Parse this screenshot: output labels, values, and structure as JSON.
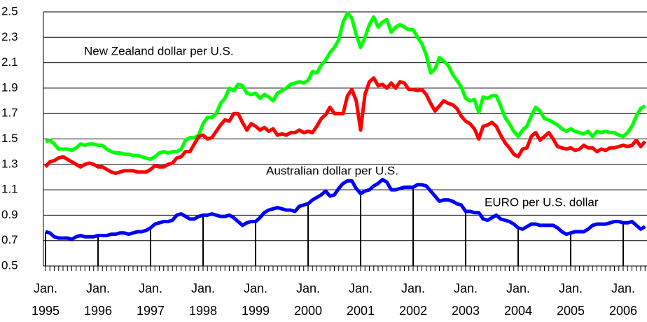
{
  "chart_data": {
    "type": "line",
    "categories": [
      "Jan.\n1995",
      null,
      null,
      null,
      null,
      null,
      null,
      null,
      null,
      null,
      null,
      null,
      "Jan.\n1996",
      null,
      null,
      null,
      null,
      null,
      null,
      null,
      null,
      null,
      null,
      null,
      "Jan.\n1997",
      null,
      null,
      null,
      null,
      null,
      null,
      null,
      null,
      null,
      null,
      null,
      "Jan.\n1998",
      null,
      null,
      null,
      null,
      null,
      null,
      null,
      null,
      null,
      null,
      null,
      "Jan.\n1999",
      null,
      null,
      null,
      null,
      null,
      null,
      null,
      null,
      null,
      null,
      null,
      "Jan.\n2000",
      null,
      null,
      null,
      null,
      null,
      null,
      null,
      null,
      null,
      null,
      null,
      "Jan.\n2001",
      null,
      null,
      null,
      null,
      null,
      null,
      null,
      null,
      null,
      null,
      null,
      "Jan.\n2002",
      null,
      null,
      null,
      null,
      null,
      null,
      null,
      null,
      null,
      null,
      null,
      "Jan.\n2003",
      null,
      null,
      null,
      null,
      null,
      null,
      null,
      null,
      null,
      null,
      null,
      "Jan.\n2004",
      null,
      null,
      null,
      null,
      null,
      null,
      null,
      null,
      null,
      null,
      null,
      "Jan.\n2005",
      null,
      null,
      null,
      null,
      null,
      null,
      null,
      null,
      null,
      null,
      null,
      "Jan.\n2006",
      null,
      null,
      null,
      null,
      null
    ],
    "series": [
      {
        "name": "New Zealand dollar per U.S.",
        "color": "#00ff00",
        "values": [
          1.48,
          1.49,
          1.46,
          1.42,
          1.42,
          1.42,
          1.41,
          1.43,
          1.46,
          1.45,
          1.46,
          1.46,
          1.45,
          1.45,
          1.42,
          1.4,
          1.39,
          1.39,
          1.38,
          1.38,
          1.37,
          1.37,
          1.36,
          1.35,
          1.34,
          1.36,
          1.39,
          1.4,
          1.39,
          1.4,
          1.4,
          1.42,
          1.49,
          1.51,
          1.51,
          1.53,
          1.62,
          1.67,
          1.67,
          1.7,
          1.78,
          1.82,
          1.9,
          1.88,
          1.93,
          1.92,
          1.86,
          1.85,
          1.86,
          1.82,
          1.85,
          1.83,
          1.8,
          1.86,
          1.88,
          1.9,
          1.93,
          1.94,
          1.95,
          1.94,
          1.96,
          2.03,
          2.02,
          2.08,
          2.12,
          2.18,
          2.22,
          2.28,
          2.42,
          2.49,
          2.45,
          2.32,
          2.22,
          2.3,
          2.4,
          2.46,
          2.38,
          2.42,
          2.44,
          2.34,
          2.38,
          2.4,
          2.38,
          2.36,
          2.36,
          2.3,
          2.25,
          2.16,
          2.02,
          2.05,
          2.14,
          2.11,
          2.08,
          2.01,
          1.96,
          1.91,
          1.82,
          1.8,
          1.81,
          1.71,
          1.83,
          1.82,
          1.84,
          1.84,
          1.76,
          1.67,
          1.62,
          1.56,
          1.52,
          1.57,
          1.6,
          1.68,
          1.75,
          1.72,
          1.66,
          1.65,
          1.63,
          1.61,
          1.58,
          1.56,
          1.58,
          1.56,
          1.55,
          1.54,
          1.56,
          1.52,
          1.56,
          1.55,
          1.56,
          1.55,
          1.55,
          1.53,
          1.52,
          1.55,
          1.6,
          1.68,
          1.74,
          1.76
        ]
      },
      {
        "name": "Australian dollar per U.S.",
        "color": "#ff0000",
        "values": [
          1.28,
          1.32,
          1.33,
          1.35,
          1.36,
          1.34,
          1.32,
          1.3,
          1.28,
          1.3,
          1.31,
          1.3,
          1.28,
          1.28,
          1.26,
          1.24,
          1.23,
          1.24,
          1.25,
          1.25,
          1.25,
          1.24,
          1.24,
          1.24,
          1.26,
          1.29,
          1.28,
          1.28,
          1.3,
          1.31,
          1.35,
          1.36,
          1.4,
          1.4,
          1.46,
          1.52,
          1.53,
          1.5,
          1.51,
          1.56,
          1.61,
          1.65,
          1.64,
          1.7,
          1.7,
          1.63,
          1.57,
          1.62,
          1.6,
          1.57,
          1.59,
          1.56,
          1.58,
          1.53,
          1.54,
          1.53,
          1.55,
          1.55,
          1.57,
          1.55,
          1.56,
          1.55,
          1.6,
          1.66,
          1.69,
          1.75,
          1.7,
          1.7,
          1.7,
          1.84,
          1.89,
          1.8,
          1.57,
          1.85,
          1.95,
          1.98,
          1.92,
          1.93,
          1.9,
          1.94,
          1.9,
          1.95,
          1.94,
          1.89,
          1.89,
          1.88,
          1.89,
          1.85,
          1.78,
          1.72,
          1.76,
          1.8,
          1.78,
          1.77,
          1.74,
          1.68,
          1.64,
          1.62,
          1.58,
          1.5,
          1.6,
          1.61,
          1.63,
          1.6,
          1.53,
          1.47,
          1.43,
          1.38,
          1.36,
          1.42,
          1.43,
          1.52,
          1.55,
          1.49,
          1.52,
          1.55,
          1.5,
          1.44,
          1.43,
          1.42,
          1.43,
          1.41,
          1.42,
          1.45,
          1.43,
          1.43,
          1.4,
          1.42,
          1.41,
          1.43,
          1.43,
          1.44,
          1.45,
          1.44,
          1.45,
          1.49,
          1.44,
          1.48
        ]
      },
      {
        "name": "EURO per U.S. dollar",
        "color": "#0000ff",
        "values": [
          0.77,
          0.76,
          0.73,
          0.72,
          0.72,
          0.72,
          0.71,
          0.73,
          0.74,
          0.73,
          0.73,
          0.73,
          0.74,
          0.74,
          0.74,
          0.75,
          0.75,
          0.76,
          0.76,
          0.75,
          0.76,
          0.77,
          0.77,
          0.78,
          0.8,
          0.83,
          0.84,
          0.85,
          0.85,
          0.86,
          0.9,
          0.91,
          0.89,
          0.87,
          0.87,
          0.89,
          0.9,
          0.9,
          0.91,
          0.9,
          0.89,
          0.89,
          0.9,
          0.88,
          0.85,
          0.82,
          0.84,
          0.85,
          0.85,
          0.88,
          0.92,
          0.94,
          0.95,
          0.96,
          0.95,
          0.94,
          0.94,
          0.93,
          0.97,
          0.98,
          0.99,
          1.02,
          1.04,
          1.06,
          1.09,
          1.05,
          1.06,
          1.11,
          1.15,
          1.17,
          1.17,
          1.11,
          1.07,
          1.09,
          1.1,
          1.13,
          1.15,
          1.18,
          1.16,
          1.1,
          1.1,
          1.11,
          1.12,
          1.12,
          1.12,
          1.14,
          1.14,
          1.13,
          1.09,
          1.05,
          1.01,
          1.02,
          1.02,
          1.01,
          0.99,
          0.98,
          0.93,
          0.93,
          0.92,
          0.92,
          0.87,
          0.86,
          0.88,
          0.9,
          0.87,
          0.86,
          0.85,
          0.83,
          0.8,
          0.79,
          0.81,
          0.83,
          0.83,
          0.82,
          0.82,
          0.82,
          0.82,
          0.8,
          0.77,
          0.75,
          0.76,
          0.77,
          0.77,
          0.77,
          0.79,
          0.82,
          0.83,
          0.83,
          0.83,
          0.84,
          0.85,
          0.85,
          0.84,
          0.84,
          0.85,
          0.82,
          0.79,
          0.81
        ]
      }
    ],
    "ylim": [
      0.5,
      2.5
    ],
    "yticks": [
      0.5,
      0.7,
      0.9,
      1.1,
      1.3,
      1.5,
      1.7,
      1.9,
      2.1,
      2.3,
      2.5
    ],
    "grid": true,
    "drop_lines_series": 2
  }
}
